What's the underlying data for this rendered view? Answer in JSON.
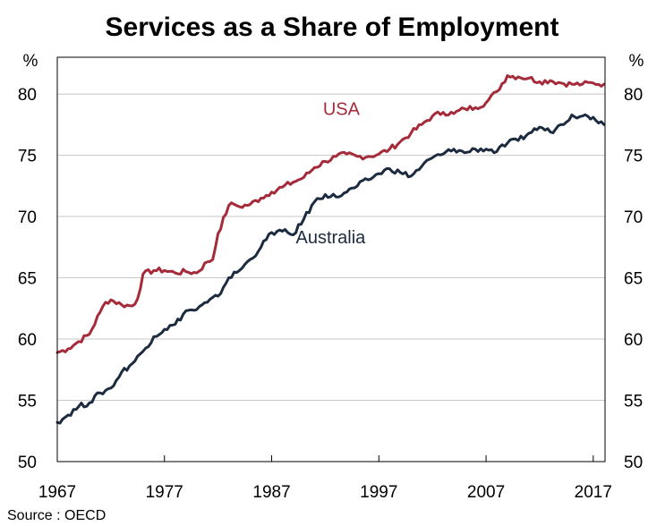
{
  "chart_data": {
    "type": "line",
    "title": "Services as a Share of Employment",
    "unit_left": "%",
    "unit_right": "%",
    "source": "Source : OECD",
    "xlim": [
      1967,
      2018.1
    ],
    "ylim": [
      50,
      83
    ],
    "y_ticks": [
      50,
      55,
      60,
      65,
      70,
      75,
      80
    ],
    "x_ticks": [
      1967,
      1977,
      1987,
      1997,
      2007,
      2017
    ],
    "x_tick_labels": [
      "1967",
      "1977",
      "1987",
      "1997",
      "2007",
      "2017"
    ],
    "grid": true,
    "series": [
      {
        "name": "USA",
        "color": "#a52a3a",
        "label_pos": [
          1993.5,
          78.3
        ],
        "x": [
          1967,
          1968,
          1969,
          1970,
          1971,
          1971.5,
          1972,
          1973,
          1974,
          1974.5,
          1975,
          1976,
          1977,
          1978,
          1979,
          1980,
          1981,
          1981.5,
          1982,
          1983,
          1983.5,
          1984,
          1985,
          1986,
          1987,
          1988,
          1989,
          1990,
          1991,
          1992,
          1993,
          1994,
          1995,
          1996,
          1997,
          1998,
          1999,
          2000,
          2001,
          2002,
          2003,
          2004,
          2005,
          2006,
          2007,
          2008,
          2009,
          2010,
          2011,
          2012,
          2013,
          2014,
          2015,
          2016,
          2017,
          2018
        ],
        "y": [
          58.9,
          59.2,
          59.8,
          60.4,
          62.2,
          63.0,
          63.2,
          62.8,
          62.7,
          63.3,
          65.3,
          65.6,
          65.6,
          65.4,
          65.5,
          65.4,
          66.3,
          66.5,
          68.6,
          70.9,
          71.0,
          70.8,
          71.0,
          71.5,
          72.0,
          72.4,
          72.8,
          73.2,
          74.0,
          74.5,
          74.9,
          75.1,
          74.9,
          74.9,
          75.1,
          75.5,
          76.1,
          76.8,
          77.5,
          78.2,
          78.5,
          78.4,
          78.8,
          78.9,
          79.3,
          80.2,
          81.5,
          81.4,
          81.3,
          81.0,
          81.1,
          80.9,
          80.8,
          80.8,
          80.9,
          80.8
        ]
      },
      {
        "name": "Australia",
        "color": "#1c2b3f",
        "label_pos": [
          1992.5,
          67.8
        ],
        "x": [
          1967,
          1968,
          1969,
          1970,
          1971,
          1972,
          1973,
          1974,
          1975,
          1976,
          1977,
          1978,
          1979,
          1980,
          1981,
          1982,
          1983,
          1984,
          1985,
          1986,
          1987,
          1988,
          1989,
          1990,
          1991,
          1992,
          1993,
          1994,
          1995,
          1996,
          1997,
          1998,
          1999,
          2000,
          2001,
          2002,
          2003,
          2004,
          2005,
          2006,
          2007,
          2008,
          2009,
          2010,
          2011,
          2012,
          2013,
          2014,
          2015,
          2016,
          2017,
          2018
        ],
        "y": [
          53.2,
          53.8,
          54.5,
          54.8,
          55.6,
          56.0,
          57.3,
          58.0,
          59.0,
          60.2,
          60.8,
          61.2,
          62.3,
          62.4,
          63.0,
          63.5,
          65.0,
          65.6,
          66.5,
          67.5,
          68.7,
          68.8,
          68.5,
          69.8,
          71.2,
          71.8,
          71.6,
          72.0,
          72.5,
          73.0,
          73.5,
          73.9,
          73.6,
          73.3,
          74.1,
          74.8,
          75.1,
          75.5,
          75.2,
          75.5,
          75.5,
          75.3,
          76.0,
          76.2,
          76.8,
          77.3,
          76.9,
          77.5,
          78.3,
          78.2,
          78.1,
          77.5
        ]
      }
    ]
  }
}
